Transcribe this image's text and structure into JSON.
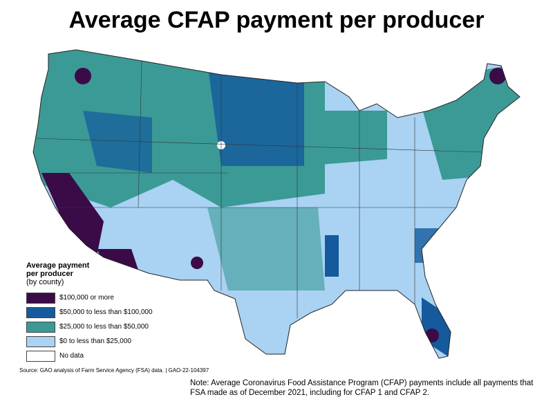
{
  "title": "Average CFAP payment per producer",
  "legend": {
    "title": [
      "Average payment",
      "per producer",
      "(by county)"
    ],
    "items": [
      {
        "label": "$100,000 or more",
        "color": "#3a0b47"
      },
      {
        "label": "$50,000 to less than $100,000",
        "color": "#145a9c"
      },
      {
        "label": "$25,000 to less than $50,000",
        "color": "#3b9a96"
      },
      {
        "label": "$0 to less than $25,000",
        "color": "#a9d2f3"
      },
      {
        "label": "No data",
        "color": "#ffffff"
      }
    ]
  },
  "source": "Source: GAO analysis of Farm Service Agency (FSA) data.  |  GAO-22-104397",
  "note": "Note: Average Coronavirus Food Assistance Program (CFAP) payments include all payments that FSA made as of December 2021, including for CFAP 1 and CFAP 2."
}
